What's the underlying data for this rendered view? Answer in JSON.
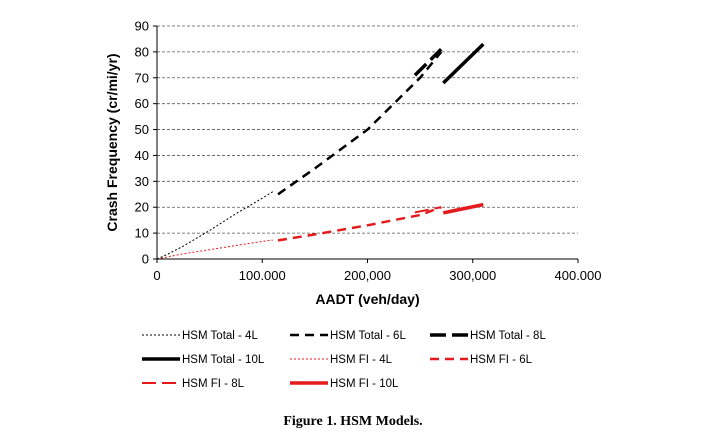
{
  "caption": "Figure 1.  HSM Models.",
  "chart_data": {
    "type": "line",
    "title": "",
    "xlabel": "AADT (veh/day)",
    "ylabel": "Crash Frequency (cr/mi/yr)",
    "xlim": [
      0,
      400000
    ],
    "ylim": [
      0,
      90
    ],
    "x_ticks": [
      0,
      100000,
      200000,
      300000,
      400000
    ],
    "x_tick_labels": [
      "0",
      "100.000",
      "200,000",
      "300,000",
      "400.000"
    ],
    "y_ticks": [
      0,
      10,
      20,
      30,
      40,
      50,
      60,
      70,
      80,
      90
    ],
    "y_tick_labels": [
      "0",
      "10",
      "20",
      "30",
      "40",
      "50",
      "60",
      "70",
      "80",
      "90"
    ],
    "grid": "horizontal dashed",
    "legend_position": "bottom",
    "series": [
      {
        "name": "HSM Total - 4L",
        "color": "#000000",
        "style": "dotted-thin",
        "x": [
          0,
          10000,
          25000,
          50000,
          75000,
          100000,
          110000
        ],
        "y": [
          0,
          1.8,
          5,
          11,
          17.5,
          23.5,
          26
        ]
      },
      {
        "name": "HSM Total - 6L",
        "color": "#000000",
        "style": "dashed-medium",
        "x": [
          115000,
          150000,
          200000,
          250000,
          270000
        ],
        "y": [
          25,
          35,
          50,
          70,
          80
        ]
      },
      {
        "name": "HSM Total - 8L",
        "color": "#000000",
        "style": "dashed-long-thick",
        "x": [
          245000,
          270000
        ],
        "y": [
          71,
          81
        ]
      },
      {
        "name": "HSM Total - 10L",
        "color": "#000000",
        "style": "solid-thick",
        "x": [
          272000,
          310000
        ],
        "y": [
          68,
          83
        ]
      },
      {
        "name": "HSM FI - 4L",
        "color": "#e41a1c",
        "style": "dotted-thin",
        "x": [
          0,
          25000,
          50000,
          75000,
          100000,
          110000
        ],
        "y": [
          0,
          2,
          3.6,
          5.2,
          6.8,
          7.3
        ]
      },
      {
        "name": "HSM FI - 6L",
        "color": "#e41a1c",
        "style": "dashed-medium",
        "x": [
          115000,
          150000,
          200000,
          250000,
          270000
        ],
        "y": [
          7.2,
          9.5,
          13,
          17,
          20
        ]
      },
      {
        "name": "HSM FI - 8L",
        "color": "#e41a1c",
        "style": "dashed-long",
        "x": [
          245000,
          270000
        ],
        "y": [
          18,
          20
        ]
      },
      {
        "name": "HSM FI - 10L",
        "color": "#e41a1c",
        "style": "solid-thick",
        "x": [
          272000,
          310000
        ],
        "y": [
          17.8,
          21
        ]
      }
    ]
  }
}
